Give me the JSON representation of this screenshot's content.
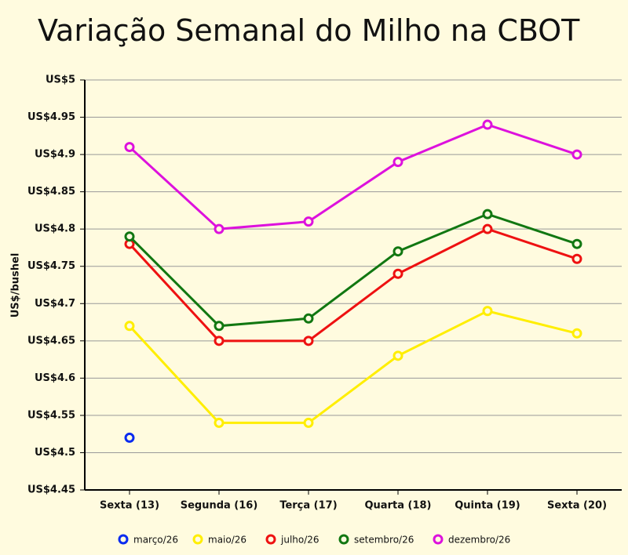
{
  "chart_data": {
    "type": "line",
    "title": "Variação Semanal do Milho na CBOT",
    "y_label": "US$/bushel",
    "categories": [
      "Sexta (13)",
      "Segunda (16)",
      "Terça (17)",
      "Quarta (18)",
      "Quinta (19)",
      "Sexta (20)"
    ],
    "series": [
      {
        "name": "março/26",
        "color": "#0a2bf0",
        "values": [
          4.52,
          null,
          null,
          null,
          null,
          null
        ]
      },
      {
        "name": "maio/26",
        "color": "#ffee00",
        "values": [
          4.67,
          4.54,
          4.54,
          4.63,
          4.69,
          4.66
        ]
      },
      {
        "name": "julho/26",
        "color": "#ee1111",
        "values": [
          4.78,
          4.65,
          4.65,
          4.74,
          4.8,
          4.76
        ]
      },
      {
        "name": "setembro/26",
        "color": "#117711",
        "values": [
          4.79,
          4.67,
          4.68,
          4.77,
          4.82,
          4.78
        ]
      },
      {
        "name": "dezembro/26",
        "color": "#dd11dd",
        "values": [
          4.91,
          4.8,
          4.81,
          4.89,
          4.94,
          4.9
        ]
      }
    ],
    "ylim": [
      4.45,
      5
    ],
    "yticks": [
      {
        "value": 4.45,
        "label": "US$4.45"
      },
      {
        "value": 4.5,
        "label": "US$4.5"
      },
      {
        "value": 4.55,
        "label": "US$4.55"
      },
      {
        "value": 4.6,
        "label": "US$4.6"
      },
      {
        "value": 4.65,
        "label": "US$4.65"
      },
      {
        "value": 4.7,
        "label": "US$4.7"
      },
      {
        "value": 4.75,
        "label": "US$4.75"
      },
      {
        "value": 4.8,
        "label": "US$4.8"
      },
      {
        "value": 4.85,
        "label": "US$4.85"
      },
      {
        "value": 4.9,
        "label": "US$4.9"
      },
      {
        "value": 4.95,
        "label": "US$4.95"
      },
      {
        "value": 5,
        "label": "US$5"
      }
    ],
    "grid": true,
    "legend": "bottom"
  }
}
